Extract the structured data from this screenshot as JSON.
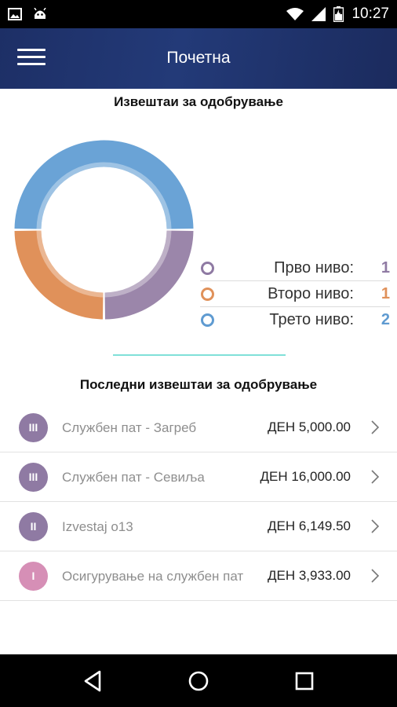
{
  "status_bar": {
    "time": "10:27",
    "icons": [
      "image-icon",
      "android-icon",
      "wifi-icon",
      "signal-icon",
      "battery-icon"
    ]
  },
  "app_bar": {
    "title": "Почетна",
    "menu_icon": "hamburger-menu-icon"
  },
  "approval_reports": {
    "title": "Извештаи за одобрување",
    "chart_data": {
      "type": "pie",
      "categories": [
        "Прво ниво:",
        "Второ ниво:",
        "Трето ниво:"
      ],
      "values": [
        1,
        1,
        2
      ],
      "colors": [
        "#9b86aa",
        "#e0915a",
        "#6aa3d6"
      ],
      "title": "Извештаи за одобрување"
    },
    "legend": [
      {
        "label": "Прво ниво:",
        "value": "1",
        "color": "#8f7aa3"
      },
      {
        "label": "Второ ниво:",
        "value": "1",
        "color": "#e0915a"
      },
      {
        "label": "Трето ниво:",
        "value": "2",
        "color": "#5f9bd1"
      }
    ]
  },
  "recent_reports": {
    "title": "Последни извештаи за одобрување",
    "items": [
      {
        "level": "III",
        "name": "Службен пат - Загреб",
        "amount": "ДЕН 5,000.00",
        "badge_color": "#8f7aa3"
      },
      {
        "level": "III",
        "name": "Службен пат - Севиља",
        "amount": "ДЕН 16,000.00",
        "badge_color": "#8f7aa3"
      },
      {
        "level": "II",
        "name": "Izvestaj o13",
        "amount": "ДЕН 6,149.50",
        "badge_color": "#8f7aa3"
      },
      {
        "level": "I",
        "name": "Осигурување на службен пат",
        "amount": "ДЕН 3,933.00",
        "badge_color": "#d68fb6"
      }
    ]
  },
  "nav_bar": {
    "buttons": [
      "back-icon",
      "home-icon",
      "recents-icon"
    ]
  }
}
